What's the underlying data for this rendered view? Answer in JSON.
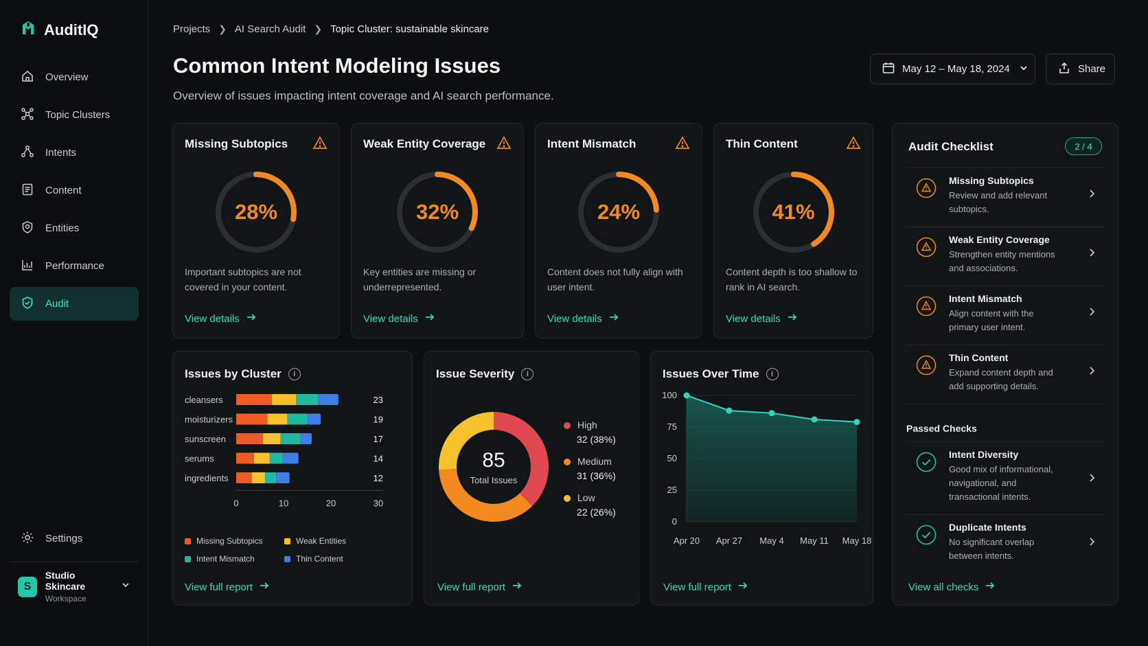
{
  "app": {
    "name": "AuditIQ"
  },
  "sidebar": {
    "items": [
      {
        "label": "Overview",
        "icon": "home-icon"
      },
      {
        "label": "Topic Clusters",
        "icon": "clusters-icon"
      },
      {
        "label": "Intents",
        "icon": "intents-icon"
      },
      {
        "label": "Content",
        "icon": "document-icon"
      },
      {
        "label": "Entities",
        "icon": "entity-icon"
      },
      {
        "label": "Performance",
        "icon": "chart-icon"
      },
      {
        "label": "Audit",
        "icon": "shield-icon",
        "active": true
      }
    ],
    "settings_label": "Settings",
    "workspace": {
      "initial": "S",
      "name": "Studio Skincare",
      "sub": "Workspace"
    }
  },
  "breadcrumb": [
    "Projects",
    "AI Search Audit",
    "Topic Cluster: sustainable skincare"
  ],
  "header": {
    "title": "Common Intent Modeling Issues",
    "subtitle": "Overview of issues impacting intent coverage and AI search performance.",
    "date_range": "May 12 – May 18, 2024",
    "share_label": "Share"
  },
  "issue_cards": [
    {
      "title": "Missing Subtopics",
      "percent": 28,
      "percent_label": "28%",
      "desc": "Important subtopics are not covered in your content.",
      "link": "View details"
    },
    {
      "title": "Weak Entity Coverage",
      "percent": 32,
      "percent_label": "32%",
      "desc": "Key entities are missing or underrepresented.",
      "link": "View details"
    },
    {
      "title": "Intent Mismatch",
      "percent": 24,
      "percent_label": "24%",
      "desc": "Content does not fully align with user intent.",
      "link": "View details"
    },
    {
      "title": "Thin Content",
      "percent": 41,
      "percent_label": "41%",
      "desc": "Content depth is too shallow to rank in AI search.",
      "link": "View details"
    }
  ],
  "cluster_panel": {
    "title": "Issues by Cluster",
    "link": "View full report",
    "legend": [
      {
        "label": "Missing Subtopics",
        "color": "#f05a24"
      },
      {
        "label": "Weak Entities",
        "color": "#f6c12b"
      },
      {
        "label": "Intent Mismatch",
        "color": "#1fb9a0"
      },
      {
        "label": "Thin Content",
        "color": "#3f7fe6"
      }
    ]
  },
  "severity_panel": {
    "title": "Issue Severity",
    "total": "85",
    "total_label": "Total Issues",
    "link": "View full report",
    "levels": [
      {
        "label": "High",
        "count": "32 (38%)",
        "color": "#e0494f"
      },
      {
        "label": "Medium",
        "count": "31 (36%)",
        "color": "#f28a1f"
      },
      {
        "label": "Low",
        "count": "22 (26%)",
        "color": "#f6c12b"
      }
    ]
  },
  "time_panel": {
    "title": "Issues Over Time",
    "link": "View full report"
  },
  "chart_data": [
    {
      "type": "bar",
      "stacked": true,
      "orientation": "horizontal",
      "title": "Issues by Cluster",
      "categories": [
        "cleansers",
        "moisturizers",
        "sunscreen",
        "serums",
        "ingredients"
      ],
      "totals": [
        23,
        19,
        17,
        14,
        12
      ],
      "series": [
        {
          "name": "Missing Subtopics",
          "values": [
            8,
            7,
            6,
            4,
            3.5
          ]
        },
        {
          "name": "Weak Entities",
          "values": [
            5.5,
            4.5,
            4,
            3.5,
            3
          ]
        },
        {
          "name": "Intent Mismatch",
          "values": [
            5,
            4.5,
            4.5,
            3,
            2.5
          ]
        },
        {
          "name": "Thin Content",
          "values": [
            4.5,
            3,
            2.5,
            3.5,
            3
          ]
        }
      ],
      "xlim": [
        0,
        30
      ],
      "xticks": [
        0,
        10,
        20,
        30
      ],
      "legend": "bottom"
    },
    {
      "type": "pie",
      "donut": true,
      "title": "Issue Severity",
      "categories": [
        "High",
        "Medium",
        "Low"
      ],
      "values": [
        32,
        31,
        22
      ],
      "total": 85
    },
    {
      "type": "area",
      "title": "Issues Over Time",
      "x": [
        "Apr 20",
        "Apr 27",
        "May 4",
        "May 11",
        "May 18"
      ],
      "values": [
        100,
        88,
        86,
        81,
        79
      ],
      "ylim": [
        0,
        100
      ],
      "yticks": [
        0,
        25,
        50,
        75,
        100
      ],
      "grid": true
    }
  ],
  "checklist": {
    "title": "Audit Checklist",
    "progress": "2 / 4",
    "items": [
      {
        "title": "Missing Subtopics",
        "desc": "Review and add relevant subtopics."
      },
      {
        "title": "Weak Entity Coverage",
        "desc": "Strengthen entity mentions and associations."
      },
      {
        "title": "Intent Mismatch",
        "desc": "Align content with the primary user intent."
      },
      {
        "title": "Thin Content",
        "desc": "Expand content depth and add supporting details."
      }
    ],
    "passed_label": "Passed Checks",
    "passed": [
      {
        "title": "Intent Diversity",
        "desc": "Good mix of informational, navigational, and transactional intents."
      },
      {
        "title": "Duplicate Intents",
        "desc": "No significant overlap between intents."
      }
    ],
    "link": "View all checks"
  },
  "colors": {
    "accent": "#34d9bd",
    "warning": "#f28a1f",
    "card_bg": "#121516",
    "page_bg": "#0c0e0f"
  }
}
